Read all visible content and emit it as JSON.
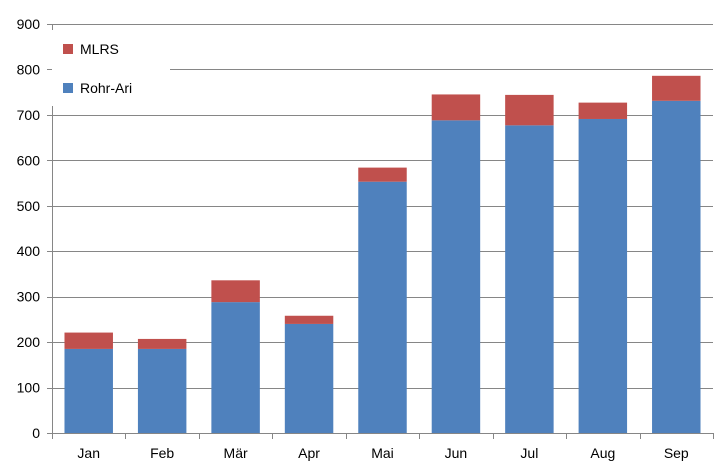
{
  "chart_data": {
    "type": "bar",
    "stacked": true,
    "title": "",
    "xlabel": "",
    "ylabel": "",
    "categories": [
      "Jan",
      "Feb",
      "Mär",
      "Apr",
      "Mai",
      "Jun",
      "Jul",
      "Aug",
      "Sep"
    ],
    "series": [
      {
        "name": "Rohr-Ari",
        "color": "#4F81BD",
        "values": [
          185,
          185,
          288,
          240,
          553,
          688,
          677,
          691,
          731
        ]
      },
      {
        "name": "MLRS",
        "color": "#C0504D",
        "values": [
          36,
          22,
          48,
          18,
          31,
          57,
          67,
          36,
          55
        ]
      }
    ],
    "ylim": [
      0,
      900
    ],
    "yticks": [
      0,
      100,
      200,
      300,
      400,
      500,
      600,
      700,
      800,
      900
    ],
    "grid": "horizontal",
    "legend_position": "top-left",
    "legend_order": [
      "MLRS",
      "Rohr-Ari"
    ]
  }
}
